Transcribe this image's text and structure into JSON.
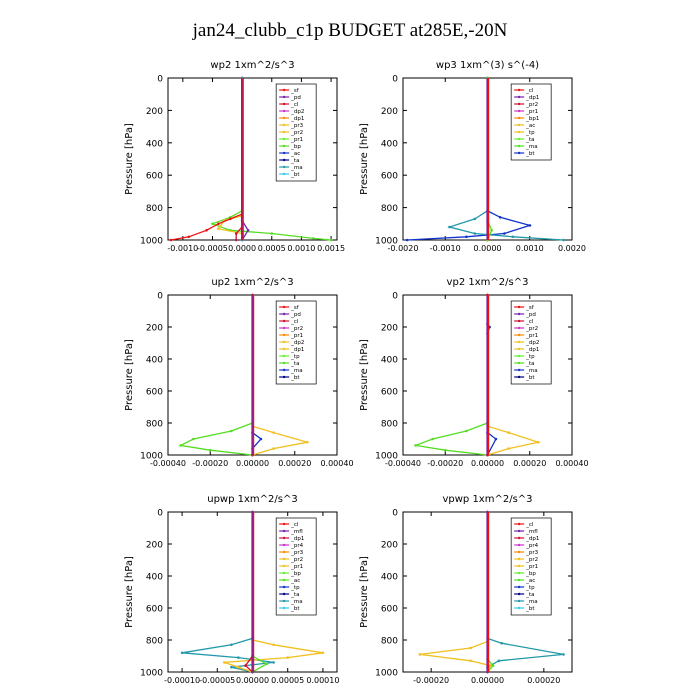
{
  "figure": {
    "title": "jan24_clubb_c1p  BUDGET at285E,-20N"
  },
  "colors": {
    "red": "#ee1111",
    "darkred": "#a00000",
    "crimson": "#d01030",
    "orange": "#ff8800",
    "yellow": "#f0c020",
    "green": "#55dd22",
    "lime": "#66ee33",
    "dkgreen": "#229922",
    "blue": "#1133cc",
    "navy": "#000088",
    "teal": "#2299aa",
    "cyan": "#33ccee",
    "purple": "#7722aa",
    "magenta": "#cc33cc",
    "black": "#000000"
  },
  "chart_data": [
    {
      "type": "line",
      "title": "wp2   1xm^2/s^3",
      "ylabel": "Pressure [hPa]",
      "ylim": [
        1000,
        0
      ],
      "xlim": [
        -0.00125,
        0.0016
      ],
      "xticks": [
        -0.001,
        -0.0005,
        0.0,
        0.0005,
        0.001,
        0.0015
      ],
      "xtick_labels": [
        "-0.0010",
        "-0.0005",
        "0.0000",
        "0.0005",
        "0.0010",
        "0.0015"
      ],
      "yticks": [
        0,
        200,
        400,
        600,
        800,
        1000
      ],
      "legend": [
        "_sf",
        "_pd",
        "_cl",
        "_dp2",
        "_dp1",
        "_pr3",
        "_pr2",
        "_pr1",
        "_bp",
        "_ac",
        "_ta",
        "_ma",
        "_bt"
      ],
      "series": [
        {
          "name": "_bp",
          "color": "green",
          "points": [
            [
              0,
              0
            ],
            [
              0,
              820
            ],
            [
              -0.0002,
              860
            ],
            [
              -0.0005,
              900
            ],
            [
              -0.0002,
              940
            ],
            [
              0.0005,
              960
            ],
            [
              0.0012,
              990
            ],
            [
              0.0015,
              1000
            ]
          ]
        },
        {
          "name": "_pr1",
          "color": "yellow",
          "points": [
            [
              0,
              0
            ],
            [
              0,
              850
            ],
            [
              -0.0003,
              880
            ],
            [
              -0.0004,
              930
            ],
            [
              0,
              960
            ],
            [
              0,
              1000
            ]
          ]
        },
        {
          "name": "_dp1",
          "color": "red",
          "points": [
            [
              0,
              0
            ],
            [
              0,
              840
            ],
            [
              -0.0002,
              870
            ],
            [
              -0.0004,
              900
            ],
            [
              -0.0006,
              940
            ],
            [
              -0.0009,
              980
            ],
            [
              -0.0012,
              1000
            ]
          ]
        },
        {
          "name": "_cl",
          "color": "crimson",
          "points": [
            [
              0,
              0
            ],
            [
              0,
              860
            ],
            [
              0,
              920
            ],
            [
              -0.0001,
              960
            ],
            [
              -0.0001,
              1000
            ]
          ]
        },
        {
          "name": "_pd",
          "color": "purple",
          "points": [
            [
              0,
              0
            ],
            [
              0,
              880
            ],
            [
              0.0001,
              940
            ],
            [
              0,
              1000
            ]
          ]
        },
        {
          "name": "_ac",
          "color": "teal",
          "points": [
            [
              0,
              0
            ],
            [
              0,
              1000
            ]
          ]
        }
      ]
    },
    {
      "type": "line",
      "title": "wp3   1xm^(3) s^(-4)",
      "ylabel": "Pressure [hPa]",
      "ylim": [
        1000,
        0
      ],
      "xlim": [
        -0.002,
        0.002
      ],
      "xticks": [
        -0.002,
        -0.001,
        0.0,
        0.001,
        0.002
      ],
      "xtick_labels": [
        "-0.0020",
        "-0.0010",
        "0.0000",
        "0.0010",
        "0.0020"
      ],
      "yticks": [
        0,
        200,
        400,
        600,
        800,
        1000
      ],
      "legend": [
        "_cl",
        "_dp1",
        "_pr2",
        "_pr1",
        "_bp1",
        "_ac",
        "_tp",
        "_ta",
        "_ma",
        "_bt"
      ],
      "series": [
        {
          "name": "_tp",
          "color": "blue",
          "points": [
            [
              0,
              0
            ],
            [
              0,
              820
            ],
            [
              0.0003,
              860
            ],
            [
              0.001,
              910
            ],
            [
              0.0004,
              960
            ],
            [
              -0.0005,
              980
            ],
            [
              -0.0019,
              1000
            ]
          ]
        },
        {
          "name": "_ta",
          "color": "teal",
          "points": [
            [
              0,
              0
            ],
            [
              0,
              820
            ],
            [
              -0.0003,
              870
            ],
            [
              -0.0009,
              920
            ],
            [
              -0.0003,
              960
            ],
            [
              0.0006,
              980
            ],
            [
              0.0018,
              1000
            ]
          ]
        },
        {
          "name": "_cl",
          "color": "crimson",
          "points": [
            [
              0,
              0
            ],
            [
              0,
              1000
            ]
          ]
        },
        {
          "name": "_dp1",
          "color": "red",
          "points": [
            [
              0,
              0
            ],
            [
              0,
              1000
            ]
          ]
        },
        {
          "name": "_bp1",
          "color": "green",
          "points": [
            [
              0,
              0
            ],
            [
              0,
              880
            ],
            [
              0.0001,
              940
            ],
            [
              0,
              1000
            ]
          ]
        }
      ]
    },
    {
      "type": "line",
      "title": "up2   1xm^2/s^3",
      "ylabel": "Pressure [hPa]",
      "ylim": [
        1000,
        0
      ],
      "xlim": [
        -0.0004,
        0.0004
      ],
      "xticks": [
        -0.0004,
        -0.0002,
        0.0,
        0.0002,
        0.0004
      ],
      "xtick_labels": [
        "-0.00040",
        "-0.00020",
        "0.00000",
        "0.00020",
        "0.00040"
      ],
      "yticks": [
        0,
        200,
        400,
        600,
        800,
        1000
      ],
      "legend": [
        "_sf",
        "_pd",
        "_cl",
        "_pr2",
        "_pr1",
        "_dp2",
        "_dp1",
        "_tp",
        "_ta",
        "_ma",
        "_bt"
      ],
      "series": [
        {
          "name": "_dp1",
          "color": "green",
          "points": [
            [
              0,
              0
            ],
            [
              0,
              800
            ],
            [
              -0.0001,
              850
            ],
            [
              -0.00028,
              900
            ],
            [
              -0.00034,
              940
            ],
            [
              -0.0002,
              970
            ],
            [
              0,
              1000
            ]
          ]
        },
        {
          "name": "_pr1",
          "color": "yellow",
          "points": [
            [
              0,
              0
            ],
            [
              0,
              820
            ],
            [
              0.0001,
              860
            ],
            [
              0.00026,
              920
            ],
            [
              0.0001,
              960
            ],
            [
              0,
              1000
            ]
          ]
        },
        {
          "name": "_tp",
          "color": "blue",
          "points": [
            [
              0,
              0
            ],
            [
              0,
              860
            ],
            [
              4e-05,
              900
            ],
            [
              0,
              960
            ],
            [
              0,
              1000
            ]
          ]
        },
        {
          "name": "_pd",
          "color": "purple",
          "points": [
            [
              0,
              0
            ],
            [
              0,
              1000
            ]
          ]
        },
        {
          "name": "_sf",
          "color": "red",
          "points": [
            [
              0,
              0
            ],
            [
              0,
              1000
            ]
          ]
        }
      ]
    },
    {
      "type": "line",
      "title": "vp2   1xm^2/s^3",
      "ylabel": "Pressure [hPa]",
      "ylim": [
        1000,
        0
      ],
      "xlim": [
        -0.0004,
        0.0004
      ],
      "xticks": [
        -0.0004,
        -0.0002,
        0.0,
        0.0002,
        0.0004
      ],
      "xtick_labels": [
        "-0.00040",
        "-0.00020",
        "0.00000",
        "0.00020",
        "0.00040"
      ],
      "yticks": [
        0,
        200,
        400,
        600,
        800,
        1000
      ],
      "legend": [
        "_sf",
        "_pd",
        "_cl",
        "_pr2",
        "_pr1",
        "_dp2",
        "_dp1",
        "_tp",
        "_ta",
        "_ma",
        "_bt"
      ],
      "series": [
        {
          "name": "_dp1",
          "color": "green",
          "points": [
            [
              0,
              0
            ],
            [
              0,
              800
            ],
            [
              -0.0001,
              850
            ],
            [
              -0.00026,
              900
            ],
            [
              -0.00034,
              940
            ],
            [
              -0.0002,
              970
            ],
            [
              0,
              1000
            ]
          ]
        },
        {
          "name": "_pr1",
          "color": "yellow",
          "points": [
            [
              0,
              0
            ],
            [
              0,
              820
            ],
            [
              0.0001,
              860
            ],
            [
              0.00024,
              920
            ],
            [
              0.0001,
              960
            ],
            [
              0,
              1000
            ]
          ]
        },
        {
          "name": "_tp",
          "color": "blue",
          "points": [
            [
              0,
              0
            ],
            [
              0,
              180
            ],
            [
              1e-05,
              200
            ],
            [
              0,
              240
            ],
            [
              0,
              860
            ],
            [
              4e-05,
              900
            ],
            [
              0,
              1000
            ]
          ]
        },
        {
          "name": "_pd",
          "color": "purple",
          "points": [
            [
              0,
              0
            ],
            [
              0,
              1000
            ]
          ]
        },
        {
          "name": "_sf",
          "color": "red",
          "points": [
            [
              0,
              0
            ],
            [
              0,
              1000
            ]
          ]
        }
      ]
    },
    {
      "type": "line",
      "title": "upwp   1xm^2/s^3",
      "ylabel": "Pressure [hPa]",
      "ylim": [
        1000,
        0
      ],
      "xlim": [
        -0.00012,
        0.00012
      ],
      "xticks": [
        -0.0001,
        -5e-05,
        0.0,
        5e-05,
        0.0001
      ],
      "xtick_labels": [
        "-0.00010",
        "-0.00005",
        "0.00000",
        "0.00005",
        "0.00010"
      ],
      "yticks": [
        0,
        200,
        400,
        600,
        800,
        1000
      ],
      "legend": [
        "_cl",
        "_mfl",
        "_dp1",
        "_pr4",
        "_pr3",
        "_pr2",
        "_pr1",
        "_bp",
        "_ac",
        "_tp",
        "_ta",
        "_ma",
        "_bt"
      ],
      "series": [
        {
          "name": "_ta",
          "color": "teal",
          "points": [
            [
              0,
              0
            ],
            [
              0,
              790
            ],
            [
              -3e-05,
              830
            ],
            [
              -0.0001,
              880
            ],
            [
              -2e-05,
              910
            ],
            [
              3e-05,
              940
            ],
            [
              -3e-05,
              970
            ],
            [
              0,
              1000
            ]
          ]
        },
        {
          "name": "_pr1",
          "color": "yellow",
          "points": [
            [
              0,
              0
            ],
            [
              0,
              800
            ],
            [
              3e-05,
              830
            ],
            [
              0.0001,
              880
            ],
            [
              5e-05,
              910
            ],
            [
              -4e-05,
              940
            ],
            [
              -2e-05,
              970
            ],
            [
              0,
              1000
            ]
          ]
        },
        {
          "name": "_bp",
          "color": "green",
          "points": [
            [
              0,
              0
            ],
            [
              0,
              900
            ],
            [
              2e-05,
              950
            ],
            [
              0,
              1000
            ]
          ]
        },
        {
          "name": "_dp1",
          "color": "crimson",
          "points": [
            [
              0,
              0
            ],
            [
              0,
              900
            ],
            [
              -1e-05,
              960
            ],
            [
              0,
              1000
            ]
          ]
        },
        {
          "name": "_mfl",
          "color": "purple",
          "points": [
            [
              0,
              0
            ],
            [
              0,
              1000
            ]
          ]
        }
      ]
    },
    {
      "type": "line",
      "title": "vpwp   1xm^2/s^3",
      "ylabel": "Pressure [hPa]",
      "ylim": [
        1000,
        0
      ],
      "xlim": [
        -0.0003,
        0.0003
      ],
      "xticks": [
        -0.0002,
        0.0,
        0.0002
      ],
      "xtick_labels": [
        "-0.00020",
        "0.00000",
        "0.00020"
      ],
      "yticks": [
        0,
        200,
        400,
        600,
        800,
        1000
      ],
      "legend": [
        "_cl",
        "_mfl",
        "_dp1",
        "_pr4",
        "_pr3",
        "_pr2",
        "_pr1",
        "_bp",
        "_ac",
        "_tp",
        "_ta",
        "_ma",
        "_bt"
      ],
      "series": [
        {
          "name": "_ta",
          "color": "teal",
          "points": [
            [
              0,
              0
            ],
            [
              0,
              790
            ],
            [
              5e-05,
              820
            ],
            [
              0.00027,
              890
            ],
            [
              4e-05,
              930
            ],
            [
              0,
              970
            ],
            [
              0,
              1000
            ]
          ]
        },
        {
          "name": "_pr1",
          "color": "yellow",
          "points": [
            [
              0,
              0
            ],
            [
              0,
              810
            ],
            [
              -6e-05,
              850
            ],
            [
              -0.00024,
              890
            ],
            [
              -6e-05,
              930
            ],
            [
              1e-05,
              960
            ],
            [
              0,
              1000
            ]
          ]
        },
        {
          "name": "_bp",
          "color": "green",
          "points": [
            [
              0,
              0
            ],
            [
              0,
              920
            ],
            [
              2e-05,
              960
            ],
            [
              0,
              1000
            ]
          ]
        },
        {
          "name": "_dp1",
          "color": "crimson",
          "points": [
            [
              0,
              0
            ],
            [
              0,
              1000
            ]
          ]
        },
        {
          "name": "_mfl",
          "color": "purple",
          "points": [
            [
              0,
              0
            ],
            [
              0,
              1000
            ]
          ]
        }
      ]
    }
  ]
}
